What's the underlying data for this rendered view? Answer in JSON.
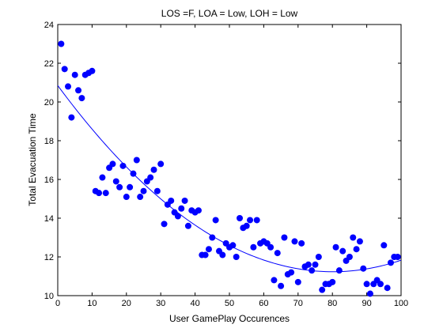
{
  "chart_data": {
    "type": "scatter",
    "title": "LOS =F, LOA = Low, LOH = Low",
    "xlabel": "User GamePlay Occurences",
    "ylabel": "Total Evacuation Time",
    "xlim": [
      0,
      100
    ],
    "ylim": [
      10,
      24
    ],
    "xticks": [
      0,
      10,
      20,
      30,
      40,
      50,
      60,
      70,
      80,
      90,
      100
    ],
    "yticks": [
      10,
      12,
      14,
      16,
      18,
      20,
      22,
      24
    ],
    "grid": false,
    "colors": {
      "points": "#0000ff",
      "fit": "#0000ff",
      "axes": "#000000"
    },
    "points": {
      "x": [
        1,
        2,
        3,
        4,
        5,
        6,
        7,
        8,
        9,
        10,
        11,
        12,
        13,
        14,
        15,
        16,
        17,
        18,
        19,
        20,
        21,
        22,
        23,
        24,
        25,
        26,
        27,
        28,
        29,
        30,
        31,
        32,
        33,
        34,
        35,
        36,
        37,
        38,
        39,
        40,
        41,
        42,
        43,
        44,
        45,
        46,
        47,
        48,
        49,
        50,
        51,
        52,
        53,
        54,
        55,
        56,
        57,
        58,
        59,
        60,
        61,
        62,
        63,
        64,
        65,
        66,
        67,
        68,
        69,
        70,
        71,
        72,
        73,
        74,
        75,
        76,
        77,
        78,
        79,
        80,
        81,
        82,
        83,
        84,
        85,
        86,
        87,
        88,
        89,
        90,
        91,
        92,
        93,
        94,
        95,
        96,
        97,
        98,
        99
      ],
      "y": [
        23.0,
        21.7,
        20.8,
        19.2,
        21.4,
        20.6,
        20.2,
        21.4,
        21.5,
        21.6,
        15.4,
        15.3,
        16.1,
        15.3,
        16.6,
        16.8,
        15.9,
        15.6,
        16.7,
        15.1,
        15.6,
        16.3,
        17.0,
        15.1,
        15.4,
        15.9,
        16.1,
        16.5,
        15.4,
        16.8,
        13.7,
        14.7,
        14.9,
        14.3,
        14.1,
        14.5,
        14.9,
        13.6,
        14.4,
        14.3,
        14.4,
        12.1,
        12.1,
        12.4,
        13.0,
        13.9,
        12.3,
        12.1,
        12.7,
        12.5,
        12.6,
        12.0,
        14.0,
        13.5,
        13.6,
        13.9,
        12.5,
        13.9,
        12.7,
        12.8,
        12.7,
        12.5,
        10.8,
        12.2,
        10.5,
        13.0,
        11.1,
        11.2,
        12.8,
        10.7,
        12.7,
        11.5,
        11.6,
        11.3,
        11.6,
        12.0,
        10.3,
        10.6,
        10.6,
        10.7,
        12.5,
        11.3,
        12.3,
        11.8,
        12.0,
        13.0,
        12.4,
        12.8,
        11.4,
        10.6,
        10.1,
        10.6,
        10.8,
        10.6,
        12.6,
        10.4,
        11.7,
        12.0,
        12.0
      ]
    },
    "fit": {
      "type": "quadratic",
      "coefficients": [
        20.85,
        -0.2402,
        0.0015
      ]
    }
  }
}
